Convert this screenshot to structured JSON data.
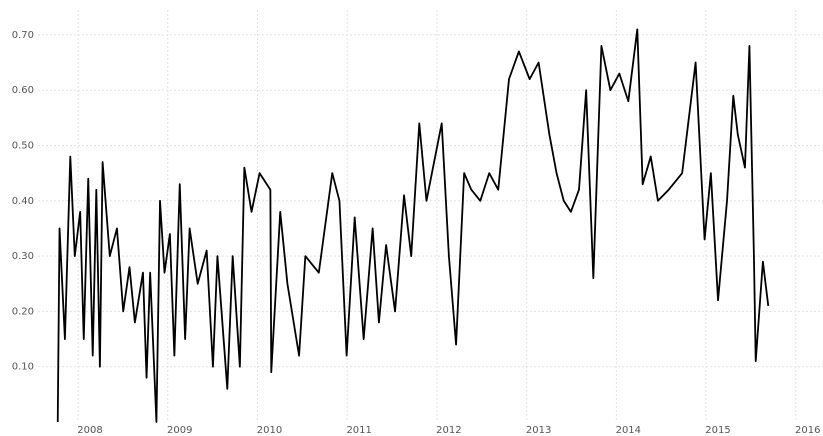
{
  "chart_data": {
    "type": "line",
    "color": "#000000",
    "grid": true,
    "xlim": [
      2007.42,
      2016.17
    ],
    "ylim": [
      0,
      0.745
    ],
    "xticks": [
      2008,
      2009,
      2010,
      2011,
      2012,
      2013,
      2014,
      2015,
      2016
    ],
    "yticks": [
      {
        "value": 0.1,
        "label": "0.10"
      },
      {
        "value": 0.2,
        "label": "0.20"
      },
      {
        "value": 0.3,
        "label": "0.30"
      },
      {
        "value": 0.4,
        "label": "0.40"
      },
      {
        "value": 0.5,
        "label": "0.50"
      },
      {
        "value": 0.6,
        "label": "0.60"
      },
      {
        "value": 0.7,
        "label": "0.70"
      }
    ],
    "x": [
      2007.64,
      2007.66,
      2007.72,
      2007.78,
      2007.83,
      2007.89,
      2007.93,
      2007.98,
      2008.03,
      2008.07,
      2008.11,
      2008.14,
      2008.22,
      2008.3,
      2008.37,
      2008.44,
      2008.5,
      2008.59,
      2008.63,
      2008.67,
      2008.74,
      2008.78,
      2008.83,
      2008.89,
      2008.94,
      2009.0,
      2009.06,
      2009.11,
      2009.2,
      2009.3,
      2009.37,
      2009.42,
      2009.53,
      2009.59,
      2009.67,
      2009.72,
      2009.8,
      2009.89,
      2010.01,
      2010.02,
      2010.12,
      2010.2,
      2010.33,
      2010.4,
      2010.55,
      2010.7,
      2010.78,
      2010.86,
      2010.95,
      2011.05,
      2011.15,
      2011.22,
      2011.3,
      2011.4,
      2011.5,
      2011.58,
      2011.67,
      2011.75,
      2011.92,
      2012.0,
      2012.08,
      2012.17,
      2012.25,
      2012.35,
      2012.45,
      2012.55,
      2012.67,
      2012.78,
      2012.9,
      2013.0,
      2013.12,
      2013.2,
      2013.28,
      2013.36,
      2013.45,
      2013.53,
      2013.61,
      2013.7,
      2013.8,
      2013.9,
      2014.0,
      2014.1,
      2014.16,
      2014.25,
      2014.33,
      2014.45,
      2014.6,
      2014.75,
      2014.85,
      2014.92,
      2015.0,
      2015.1,
      2015.17,
      2015.22,
      2015.3,
      2015.35,
      2015.4,
      2015.42,
      2015.5,
      2015.56
    ],
    "values": [
      0.0,
      0.35,
      0.15,
      0.48,
      0.3,
      0.38,
      0.15,
      0.44,
      0.12,
      0.42,
      0.1,
      0.47,
      0.3,
      0.35,
      0.2,
      0.28,
      0.18,
      0.27,
      0.08,
      0.27,
      0.0,
      0.4,
      0.27,
      0.34,
      0.12,
      0.43,
      0.15,
      0.35,
      0.25,
      0.31,
      0.1,
      0.3,
      0.06,
      0.3,
      0.1,
      0.46,
      0.38,
      0.45,
      0.42,
      0.09,
      0.38,
      0.25,
      0.12,
      0.3,
      0.27,
      0.45,
      0.4,
      0.12,
      0.37,
      0.15,
      0.35,
      0.18,
      0.32,
      0.2,
      0.41,
      0.3,
      0.54,
      0.4,
      0.54,
      0.3,
      0.14,
      0.45,
      0.42,
      0.4,
      0.45,
      0.42,
      0.62,
      0.67,
      0.62,
      0.65,
      0.52,
      0.45,
      0.4,
      0.38,
      0.42,
      0.6,
      0.26,
      0.68,
      0.6,
      0.63,
      0.58,
      0.71,
      0.43,
      0.48,
      0.4,
      0.42,
      0.45,
      0.65,
      0.33,
      0.45,
      0.22,
      0.4,
      0.59,
      0.52,
      0.46,
      0.68,
      0.3,
      0.11,
      0.29,
      0.21
    ]
  }
}
